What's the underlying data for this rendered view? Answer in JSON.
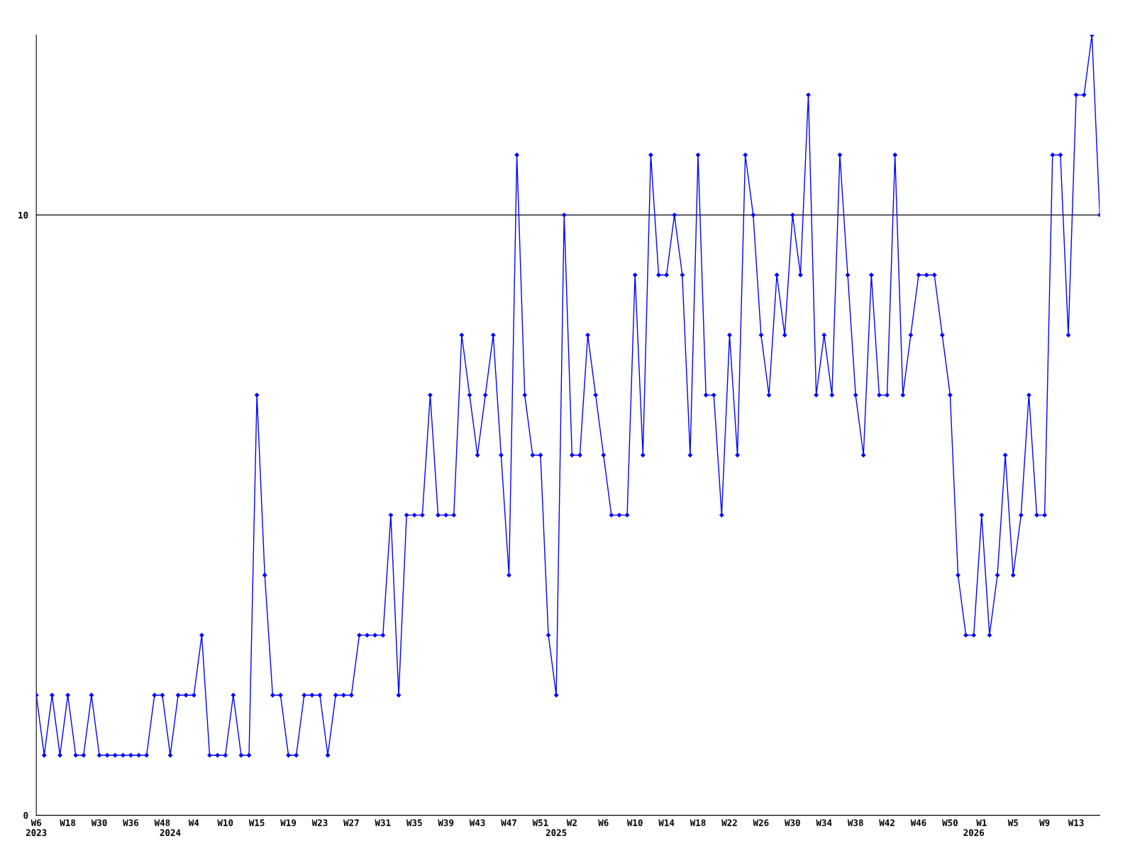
{
  "chart_data": {
    "type": "line",
    "categories": [
      "W6\n2023",
      null,
      null,
      null,
      "W18",
      null,
      null,
      null,
      "W30",
      null,
      null,
      null,
      "W36",
      null,
      null,
      null,
      "W48",
      "\n2024",
      null,
      null,
      "W4",
      null,
      null,
      null,
      "W10",
      null,
      null,
      null,
      "W15",
      null,
      null,
      null,
      "W19",
      null,
      null,
      null,
      "W23",
      null,
      null,
      null,
      "W27",
      null,
      null,
      null,
      "W31",
      null,
      null,
      null,
      "W35",
      null,
      null,
      null,
      "W39",
      null,
      null,
      null,
      "W43",
      null,
      null,
      null,
      "W47",
      null,
      null,
      null,
      "W51",
      null,
      "\n2025",
      null,
      "W2",
      null,
      null,
      null,
      "W6",
      null,
      null,
      null,
      "W10",
      null,
      null,
      null,
      "W14",
      null,
      null,
      null,
      "W18",
      null,
      null,
      null,
      "W22",
      null,
      null,
      null,
      "W26",
      null,
      null,
      null,
      "W30",
      null,
      null,
      null,
      "W34",
      null,
      null,
      null,
      "W38",
      null,
      null,
      null,
      "W42",
      null,
      null,
      null,
      "W46",
      null,
      null,
      null,
      "W50",
      null,
      null,
      "\n2026",
      "W1",
      null,
      null,
      null,
      "W5",
      null,
      null,
      null,
      "W9",
      null,
      null,
      null,
      "W13",
      null,
      null,
      null
    ],
    "series": [
      {
        "color": "#0000ff",
        "values": [
          2,
          1,
          2,
          1,
          2,
          1,
          1,
          2,
          1,
          1,
          1,
          1,
          1,
          1,
          1,
          2,
          2,
          1,
          2,
          2,
          2,
          3,
          1,
          1,
          1,
          2,
          1,
          1,
          7,
          4,
          2,
          2,
          1,
          1,
          2,
          2,
          2,
          1,
          2,
          2,
          2,
          3,
          3,
          3,
          3,
          5,
          2,
          5,
          5,
          5,
          7,
          5,
          5,
          5,
          8,
          7,
          6,
          7,
          8,
          6,
          4,
          11,
          7,
          6,
          6,
          3,
          2,
          10,
          6,
          6,
          8,
          7,
          6,
          5,
          5,
          5,
          9,
          6,
          11,
          9,
          9,
          10,
          9,
          6,
          11,
          7,
          7,
          5,
          8,
          6,
          11,
          10,
          8,
          7,
          9,
          8,
          10,
          9,
          12,
          7,
          8,
          7,
          11,
          9,
          7,
          6,
          9,
          7,
          7,
          11,
          7,
          8,
          9,
          9,
          9,
          8,
          7,
          4,
          3,
          3,
          5,
          3,
          4,
          6,
          4,
          5,
          7,
          5,
          5,
          11,
          11,
          8,
          12,
          12,
          13,
          10
        ]
      }
    ],
    "ylim": [
      0,
      13
    ],
    "yticks": [
      0,
      10
    ],
    "grid": "y",
    "marker": "diamond",
    "line_style": "solid"
  }
}
